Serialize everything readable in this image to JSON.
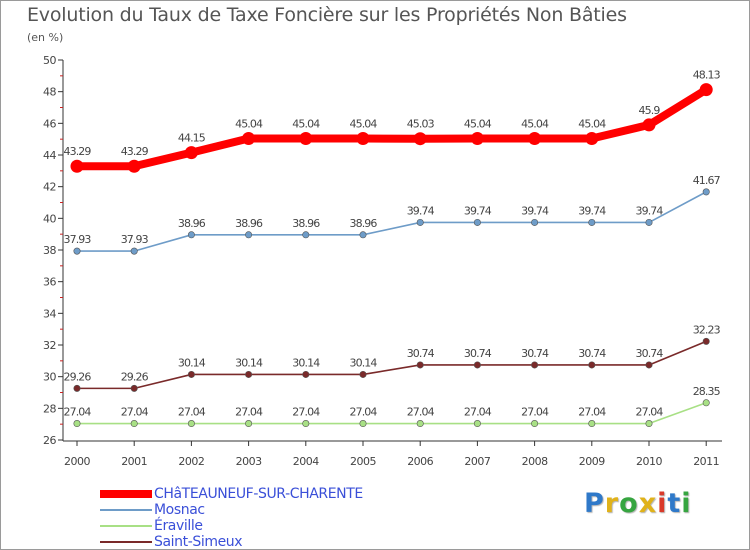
{
  "chart_data": {
    "type": "line",
    "title": "Evolution du Taux de Taxe Foncière sur les Propriétés Non Bâties",
    "ylabel": "(en %)",
    "ylim": [
      26,
      50
    ],
    "yticks": [
      "26",
      "28",
      "30",
      "32",
      "34",
      "36",
      "38",
      "40",
      "42",
      "44",
      "46",
      "48",
      "50"
    ],
    "grid": false,
    "categories": [
      "2000",
      "2001",
      "2002",
      "2003",
      "2004",
      "2005",
      "2006",
      "2007",
      "2008",
      "2009",
      "2010",
      "2011"
    ],
    "series": [
      {
        "name": "CHâTEAUNEUF-SUR-CHARENTE",
        "color": "#ff0000",
        "values": [
          43.29,
          43.29,
          44.15,
          45.04,
          45.04,
          45.04,
          45.03,
          45.04,
          45.04,
          45.04,
          45.9,
          48.13
        ],
        "labels": [
          "43.29",
          "43.29",
          "44.15",
          "45.04",
          "45.04",
          "45.04",
          "45.03",
          "45.04",
          "45.04",
          "45.04",
          "45.9",
          "48.13"
        ]
      },
      {
        "name": "Mosnac",
        "color": "#6e9cc8",
        "values": [
          37.93,
          37.93,
          38.96,
          38.96,
          38.96,
          38.96,
          39.74,
          39.74,
          39.74,
          39.74,
          39.74,
          41.67
        ],
        "labels": [
          "37.93",
          "37.93",
          "38.96",
          "38.96",
          "38.96",
          "38.96",
          "39.74",
          "39.74",
          "39.74",
          "39.74",
          "39.74",
          "41.67"
        ]
      },
      {
        "name": "Éraville",
        "color": "#a8e085",
        "values": [
          27.04,
          27.04,
          27.04,
          27.04,
          27.04,
          27.04,
          27.04,
          27.04,
          27.04,
          27.04,
          27.04,
          28.35
        ],
        "labels": [
          "27.04",
          "27.04",
          "27.04",
          "27.04",
          "27.04",
          "27.04",
          "27.04",
          "27.04",
          "27.04",
          "27.04",
          "27.04",
          "28.35"
        ]
      },
      {
        "name": "Saint-Simeux",
        "color": "#7a2a2a",
        "values": [
          29.26,
          29.26,
          30.14,
          30.14,
          30.14,
          30.14,
          30.74,
          30.74,
          30.74,
          30.74,
          30.74,
          32.23
        ],
        "labels": [
          "29.26",
          "29.26",
          "30.14",
          "30.14",
          "30.14",
          "30.14",
          "30.74",
          "30.74",
          "30.74",
          "30.74",
          "30.74",
          "32.23"
        ]
      }
    ]
  },
  "brand": {
    "letters": [
      "P",
      "r",
      "o",
      "x",
      "i",
      "t",
      "i"
    ],
    "colors": [
      "#2f79c9",
      "#e0b21a",
      "#36a540",
      "#e0b21a",
      "#d93a2a",
      "#2f79c9",
      "#36a540"
    ]
  }
}
